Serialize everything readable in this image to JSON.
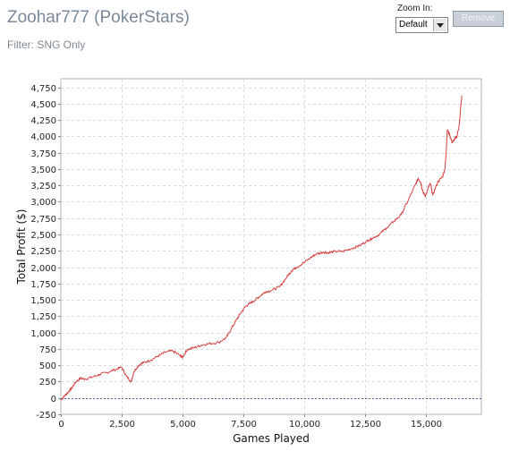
{
  "header": {
    "title": "Zoohar777 (PokerStars)",
    "filter": "Filter: SNG Only"
  },
  "controls": {
    "zoom_label": "Zoom In:",
    "zoom_value": "Default",
    "remove_label": "Remove"
  },
  "chart_data": {
    "type": "line",
    "title": "",
    "xlabel": "Games Played",
    "ylabel": "Total Profit ($)",
    "xlim": [
      0,
      17300
    ],
    "ylim": [
      -250,
      4880
    ],
    "x_ticks": [
      0,
      2500,
      5000,
      7500,
      10000,
      12500,
      15000
    ],
    "x_tick_labels": [
      "0",
      "2,500",
      "5,000",
      "7,500",
      "10,000",
      "12,500",
      "15,000"
    ],
    "y_ticks": [
      -250,
      0,
      250,
      500,
      750,
      1000,
      1250,
      1500,
      1750,
      2000,
      2250,
      2500,
      2750,
      3000,
      3250,
      3500,
      3750,
      4000,
      4250,
      4500,
      4750
    ],
    "y_tick_labels": [
      "-250",
      "0",
      "250",
      "500",
      "750",
      "1,000",
      "1,250",
      "1,500",
      "1,750",
      "2,000",
      "2,250",
      "2,500",
      "2,750",
      "3,000",
      "3,250",
      "3,500",
      "3,750",
      "4,000",
      "4,250",
      "4,500",
      "4,750"
    ],
    "grid": true,
    "baseline": 0,
    "colors": {
      "line": "#d64040",
      "baseline": "#5a5aa8",
      "grid": "#dcdcdc"
    },
    "series": [
      {
        "x": [
          0,
          150,
          300,
          450,
          600,
          800,
          1000,
          1300,
          1600,
          1900,
          2200,
          2500,
          2700,
          2900,
          3000,
          3200,
          3400,
          3700,
          4000,
          4300,
          4600,
          4900,
          5000,
          5200,
          5500,
          5800,
          6100,
          6500,
          6800,
          7000,
          7200,
          7400,
          7600,
          7800,
          8000,
          8200,
          8400,
          8700,
          9000,
          9300,
          9500,
          9700,
          10000,
          10300,
          10500,
          10800,
          11000,
          11300,
          11600,
          12000,
          12300,
          12600,
          12800,
          13100,
          13400,
          13700,
          14000,
          14300,
          14600,
          14700,
          14800,
          14900,
          15000,
          15100,
          15200,
          15300,
          15500,
          15700,
          15800,
          15850,
          15900,
          16000,
          16100,
          16200,
          16300,
          16400,
          16450,
          16500
        ],
        "y": [
          -30,
          30,
          90,
          150,
          240,
          300,
          290,
          320,
          360,
          390,
          430,
          470,
          330,
          250,
          400,
          500,
          540,
          580,
          640,
          700,
          720,
          650,
          620,
          740,
          770,
          810,
          830,
          850,
          920,
          1050,
          1180,
          1300,
          1400,
          1450,
          1500,
          1560,
          1620,
          1650,
          1700,
          1850,
          1950,
          2000,
          2070,
          2150,
          2200,
          2230,
          2220,
          2240,
          2240,
          2290,
          2330,
          2400,
          2440,
          2500,
          2600,
          2700,
          2800,
          3030,
          3270,
          3360,
          3300,
          3150,
          3080,
          3200,
          3280,
          3100,
          3300,
          3380,
          3500,
          3750,
          4100,
          4020,
          3900,
          3960,
          4000,
          4200,
          4450,
          4620
        ]
      }
    ]
  }
}
